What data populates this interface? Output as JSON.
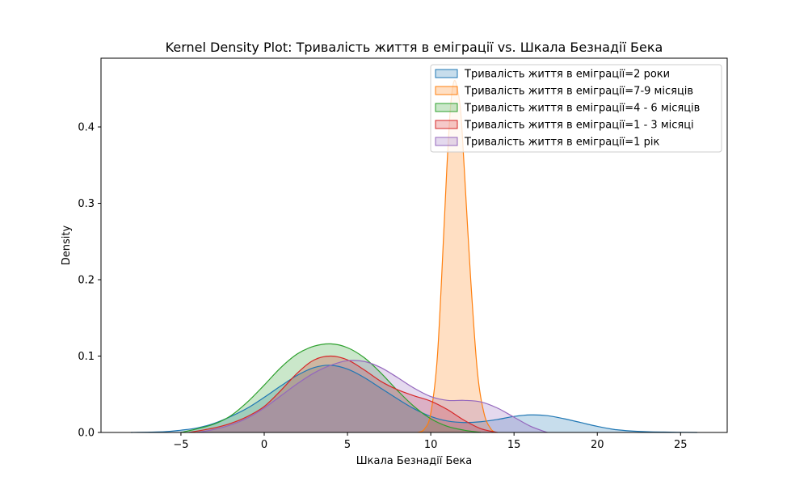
{
  "chart_data": {
    "type": "area",
    "title": "Kernel Density Plot: Тривалість життя в еміграції vs. Шкала Безнадії Бека",
    "xlabel": "Шкала Безнадії Бека",
    "ylabel": "Density",
    "xlim": [
      -9.8,
      27.8
    ],
    "ylim": [
      0,
      0.49
    ],
    "x_ticks": [
      -5,
      0,
      5,
      10,
      15,
      20,
      25
    ],
    "x_tick_labels": [
      "−5",
      "0",
      "5",
      "10",
      "15",
      "20",
      "25"
    ],
    "y_ticks": [
      0.0,
      0.1,
      0.2,
      0.3,
      0.4
    ],
    "y_tick_labels": [
      "0.0",
      "0.1",
      "0.2",
      "0.3",
      "0.4"
    ],
    "grid": false,
    "legend_position": "top-right",
    "series": [
      {
        "name": "Тривалість життя в еміграції=2 роки",
        "color": "#1f77b4",
        "x": [
          -8,
          -6,
          -5,
          -4,
          -3,
          -2,
          -1,
          0,
          1,
          2,
          3,
          4,
          5,
          6,
          7,
          8,
          9,
          10,
          11,
          12,
          13,
          14,
          15,
          16,
          17,
          18,
          19,
          20,
          21,
          22,
          23,
          24,
          25,
          26
        ],
        "y": [
          0.0,
          0.001,
          0.003,
          0.006,
          0.012,
          0.021,
          0.032,
          0.046,
          0.061,
          0.075,
          0.085,
          0.088,
          0.083,
          0.072,
          0.058,
          0.044,
          0.031,
          0.021,
          0.015,
          0.013,
          0.014,
          0.017,
          0.021,
          0.023,
          0.022,
          0.018,
          0.013,
          0.008,
          0.004,
          0.002,
          0.001,
          0.0005,
          0.0002,
          0.0
        ]
      },
      {
        "name": "Тривалість життя в еміграції=7-9 місяців",
        "color": "#ff7f0e",
        "x": [
          9.2,
          9.6,
          10.0,
          10.4,
          10.8,
          11.0,
          11.2,
          11.4,
          11.6,
          11.8,
          12.0,
          12.4,
          12.8,
          13.2,
          13.6,
          13.9
        ],
        "y": [
          0.0,
          0.004,
          0.025,
          0.1,
          0.27,
          0.36,
          0.43,
          0.46,
          0.45,
          0.42,
          0.35,
          0.2,
          0.08,
          0.025,
          0.005,
          0.0
        ]
      },
      {
        "name": "Тривалість життя в еміграції=4 - 6 місяців",
        "color": "#2ca02c",
        "x": [
          -5,
          -4,
          -3,
          -2,
          -1,
          0,
          1,
          2,
          3,
          4,
          5,
          6,
          7,
          8,
          9,
          10,
          11,
          12,
          13
        ],
        "y": [
          0.0,
          0.005,
          0.011,
          0.022,
          0.04,
          0.062,
          0.085,
          0.103,
          0.113,
          0.116,
          0.111,
          0.098,
          0.078,
          0.055,
          0.034,
          0.018,
          0.008,
          0.003,
          0.0
        ]
      },
      {
        "name": "Тривалість життя в еміграції=1 - 3 місяці",
        "color": "#d62728",
        "x": [
          -4.5,
          -3,
          -2,
          -1,
          0,
          1,
          2,
          3,
          4,
          5,
          6,
          7,
          8,
          9,
          10,
          11,
          12,
          13,
          14
        ],
        "y": [
          0.0,
          0.006,
          0.012,
          0.021,
          0.034,
          0.055,
          0.078,
          0.095,
          0.1,
          0.095,
          0.082,
          0.067,
          0.056,
          0.048,
          0.041,
          0.03,
          0.016,
          0.005,
          0.0
        ]
      },
      {
        "name": "Тривалість життя в еміграції=1 рік",
        "color": "#9467bd",
        "x": [
          -4,
          -3,
          -2,
          -1,
          0,
          1,
          2,
          3,
          4,
          5,
          6,
          7,
          8,
          9,
          10,
          11,
          12,
          13,
          14,
          15,
          16,
          17
        ],
        "y": [
          0.0,
          0.004,
          0.01,
          0.019,
          0.032,
          0.048,
          0.064,
          0.078,
          0.088,
          0.094,
          0.093,
          0.085,
          0.072,
          0.058,
          0.047,
          0.042,
          0.042,
          0.04,
          0.032,
          0.02,
          0.008,
          0.0
        ]
      }
    ]
  }
}
